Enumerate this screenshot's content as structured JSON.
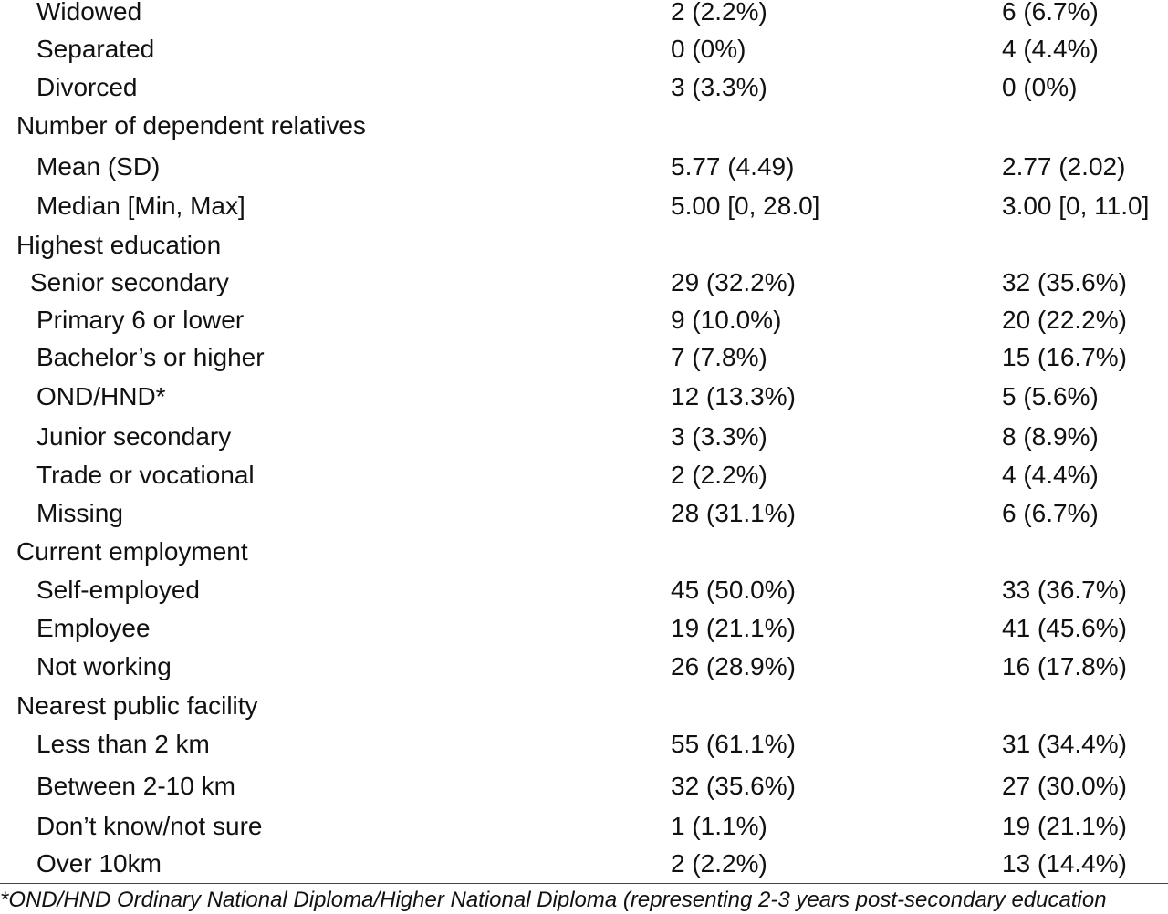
{
  "rows": [
    {
      "label": "Widowed",
      "col1": "2 (2.2%)",
      "col2": "6 (6.7%)"
    },
    {
      "label": "Separated",
      "col1": "0 (0%)",
      "col2": "4 (4.4%)"
    },
    {
      "label": "Divorced",
      "col1": "3 (3.3%)",
      "col2": "0 (0%)"
    },
    {
      "label": "Number of dependent relatives",
      "col1": "",
      "col2": ""
    },
    {
      "label": "Mean (SD)",
      "col1": "5.77 (4.49)",
      "col2": "2.77 (2.02)"
    },
    {
      "label": "Median [Min, Max]",
      "col1": "5.00 [0, 28.0]",
      "col2": "3.00 [0, 11.0]"
    },
    {
      "label": "Highest education",
      "col1": "",
      "col2": ""
    },
    {
      "label": "Senior secondary",
      "col1": "29 (32.2%)",
      "col2": "32 (35.6%)"
    },
    {
      "label": "Primary 6 or lower",
      "col1": "9 (10.0%)",
      "col2": "20 (22.2%)"
    },
    {
      "label": "Bachelor’s or higher",
      "col1": "7 (7.8%)",
      "col2": "15 (16.7%)"
    },
    {
      "label": "OND/HND*",
      "col1": "12 (13.3%)",
      "col2": "5 (5.6%)"
    },
    {
      "label": "Junior secondary",
      "col1": "3 (3.3%)",
      "col2": "8 (8.9%)"
    },
    {
      "label": "Trade or vocational",
      "col1": "2 (2.2%)",
      "col2": "4 (4.4%)"
    },
    {
      "label": "Missing",
      "col1": "28 (31.1%)",
      "col2": "6 (6.7%)"
    },
    {
      "label": "Current employment",
      "col1": "",
      "col2": ""
    },
    {
      "label": "Self-employed",
      "col1": "45 (50.0%)",
      "col2": "33 (36.7%)"
    },
    {
      "label": "Employee",
      "col1": "19 (21.1%)",
      "col2": "41 (45.6%)"
    },
    {
      "label": "Not working",
      "col1": "26 (28.9%)",
      "col2": "16 (17.8%)"
    },
    {
      "label": "Nearest public facility",
      "col1": "",
      "col2": ""
    },
    {
      "label": "Less than 2 km",
      "col1": "55 (61.1%)",
      "col2": "31 (34.4%)"
    },
    {
      "label": "Between 2-10 km",
      "col1": "32 (35.6%)",
      "col2": "27 (30.0%)"
    },
    {
      "label": "Don’t know/not sure",
      "col1": "1 (1.1%)",
      "col2": "19 (21.1%)"
    },
    {
      "label": "Over 10km",
      "col1": "2 (2.2%)",
      "col2": "13 (14.4%)"
    }
  ],
  "footnote": "*OND/HND Ordinary National Diploma/Higher National Diploma (representing 2-3 years post-secondary education"
}
